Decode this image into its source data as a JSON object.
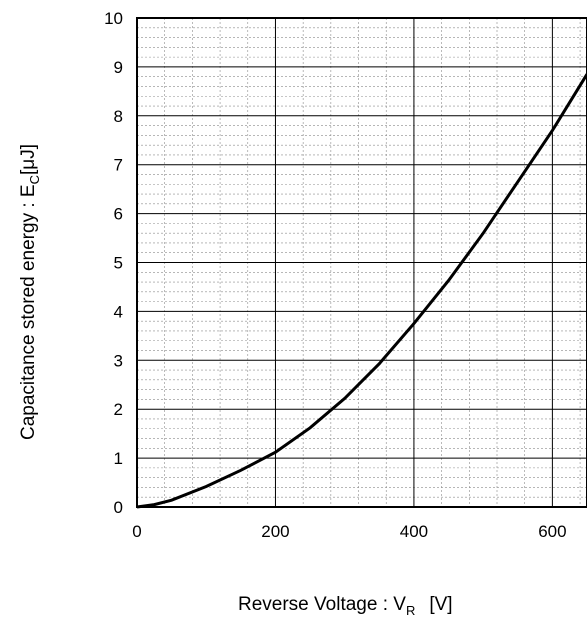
{
  "chart_data": {
    "type": "line",
    "xlabel": "Reverse Voltage : V",
    "xlabel_sub": "R",
    "xlabel_unit": "[V]",
    "ylabel": "Capacitance stored energy : E",
    "ylabel_sub": "C",
    "ylabel_unit": "[μJ]",
    "xlim": [
      0,
      650
    ],
    "ylim": [
      0,
      10
    ],
    "x_ticks": [
      0,
      200,
      400,
      600
    ],
    "y_ticks": [
      0,
      1,
      2,
      3,
      4,
      5,
      6,
      7,
      8,
      9,
      10
    ],
    "grid": true,
    "line_color": "#000000",
    "series": [
      {
        "x": [
          0,
          25,
          50,
          100,
          150,
          200,
          250,
          300,
          350,
          400,
          450,
          500,
          550,
          600,
          650
        ],
        "values": [
          0,
          0.05,
          0.14,
          0.42,
          0.75,
          1.12,
          1.62,
          2.22,
          2.93,
          3.75,
          4.63,
          5.6,
          6.65,
          7.7,
          8.85
        ]
      }
    ]
  }
}
